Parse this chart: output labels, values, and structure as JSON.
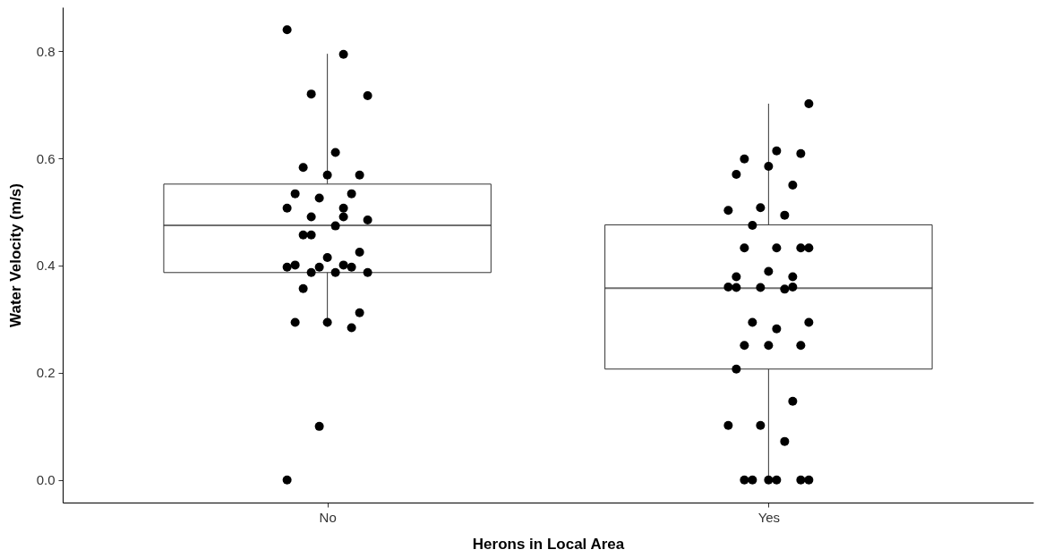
{
  "chart_data": {
    "type": "box",
    "xlabel": "Herons in Local Area",
    "ylabel": "Water Velocity (m/s)",
    "categories": [
      "No",
      "Yes"
    ],
    "boxes": [
      {
        "low": 0.286,
        "q1": 0.387,
        "median": 0.475,
        "q3": 0.552,
        "high": 0.795
      },
      {
        "low": 0.0,
        "q1": 0.207,
        "median": 0.358,
        "q3": 0.476,
        "high": 0.702
      }
    ],
    "series": [
      {
        "type": "scatter",
        "color": "#000000",
        "marker": "circle",
        "x": [
          "No",
          "No",
          "No",
          "No",
          "No",
          "No",
          "No",
          "No",
          "No",
          "No",
          "No",
          "No",
          "No",
          "No",
          "No",
          "No",
          "No",
          "No",
          "No",
          "No",
          "No",
          "No",
          "No",
          "No",
          "No",
          "No",
          "No",
          "No",
          "No",
          "No",
          "No",
          "No",
          "No",
          "No",
          "No",
          "No",
          "Yes",
          "Yes",
          "Yes",
          "Yes",
          "Yes",
          "Yes",
          "Yes",
          "Yes",
          "Yes",
          "Yes",
          "Yes",
          "Yes",
          "Yes",
          "Yes",
          "Yes",
          "Yes",
          "Yes",
          "Yes",
          "Yes",
          "Yes",
          "Yes",
          "Yes",
          "Yes",
          "Yes",
          "Yes",
          "Yes",
          "Yes",
          "Yes",
          "Yes",
          "Yes",
          "Yes",
          "Yes",
          "Yes",
          "Yes",
          "Yes",
          "Yes",
          "Yes",
          "Yes",
          "Yes",
          "Yes"
        ],
        "values": [
          0.84,
          0.794,
          0.72,
          0.717,
          0.611,
          0.583,
          0.569,
          0.569,
          0.534,
          0.534,
          0.526,
          0.507,
          0.507,
          0.491,
          0.485,
          0.474,
          0.457,
          0.425,
          0.415,
          0.401,
          0.397,
          0.397,
          0.397,
          0.401,
          0.387,
          0.387,
          0.387,
          0.357,
          0.312,
          0.294,
          0.294,
          0.284,
          0.1,
          0.0,
          0.491,
          0.457,
          0.702,
          0.614,
          0.599,
          0.609,
          0.585,
          0.57,
          0.55,
          0.508,
          0.503,
          0.494,
          0.475,
          0.433,
          0.433,
          0.433,
          0.433,
          0.389,
          0.379,
          0.379,
          0.359,
          0.36,
          0.356,
          0.294,
          0.294,
          0.282,
          0.251,
          0.251,
          0.251,
          0.207,
          0.147,
          0.102,
          0.102,
          0.072,
          0.0,
          0.0,
          0.0,
          0.0,
          0.0,
          0.0,
          0.359,
          0.36
        ]
      }
    ],
    "ylim": [
      -0.042,
      0.882
    ],
    "yticks": [
      {
        "value": 0.0,
        "label": "0.0"
      },
      {
        "value": 0.2,
        "label": "0.2"
      },
      {
        "value": 0.4,
        "label": "0.4"
      },
      {
        "value": 0.6,
        "label": "0.6"
      },
      {
        "value": 0.8,
        "label": "0.8"
      }
    ],
    "grid": false
  }
}
